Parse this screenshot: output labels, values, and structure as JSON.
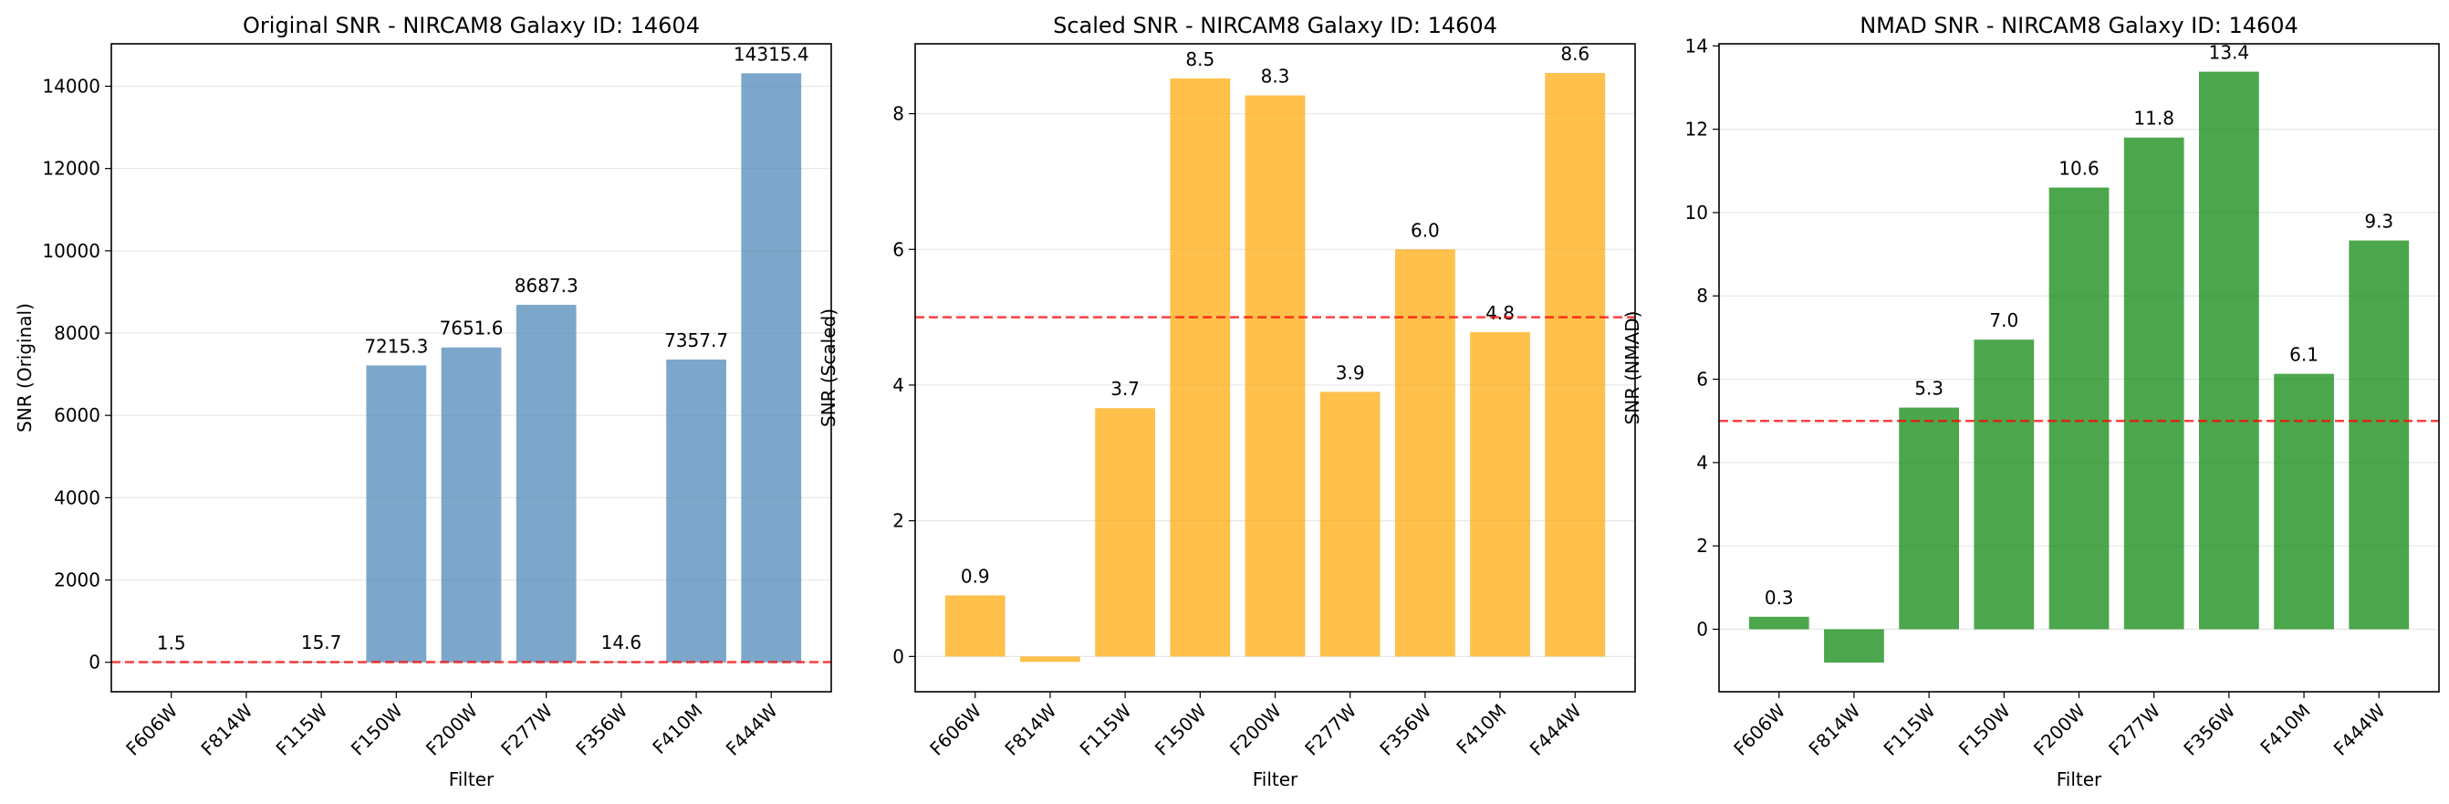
{
  "chart_data": [
    {
      "type": "bar",
      "title": "Original SNR - NIRCAM8 Galaxy ID: 14604",
      "xlabel": "Filter",
      "ylabel": "SNR (Original)",
      "categories": [
        "F606W",
        "F814W",
        "F115W",
        "F150W",
        "F200W",
        "F277W",
        "F356W",
        "F410M",
        "F444W"
      ],
      "values": [
        1.5,
        -0.5,
        15.7,
        7215.3,
        7651.6,
        8687.3,
        14.6,
        7357.7,
        14315.4
      ],
      "bar_labels": [
        "1.5",
        "",
        "15.7",
        "7215.3",
        "7651.6",
        "8687.3",
        "14.6",
        "7357.7",
        "14315.4"
      ],
      "ylim": [
        -716,
        15031
      ],
      "yticks": [
        0,
        2000,
        4000,
        6000,
        8000,
        10000,
        12000,
        14000
      ],
      "threshold": 5,
      "bar_color": "#4682B4",
      "bar_opacity": 0.7,
      "grid": "y"
    },
    {
      "type": "bar",
      "title": "Scaled SNR - NIRCAM8 Galaxy ID: 14604",
      "xlabel": "Filter",
      "ylabel": "SNR (Scaled)",
      "categories": [
        "F606W",
        "F814W",
        "F115W",
        "F150W",
        "F200W",
        "F277W",
        "F356W",
        "F410M",
        "F444W"
      ],
      "values": [
        0.9,
        -0.08,
        3.66,
        8.52,
        8.27,
        3.9,
        6.0,
        4.78,
        8.6
      ],
      "bar_labels": [
        "0.9",
        "",
        "3.7",
        "8.5",
        "8.3",
        "3.9",
        "6.0",
        "4.8",
        "8.6"
      ],
      "ylim": [
        -0.52,
        9.03
      ],
      "yticks": [
        0,
        2,
        4,
        6,
        8
      ],
      "threshold": 5,
      "bar_color": "#FFA500",
      "bar_opacity": 0.7,
      "grid": "y"
    },
    {
      "type": "bar",
      "title": "NMAD SNR - NIRCAM8 Galaxy ID: 14604",
      "xlabel": "Filter",
      "ylabel": "SNR (NMAD)",
      "categories": [
        "F606W",
        "F814W",
        "F115W",
        "F150W",
        "F200W",
        "F277W",
        "F356W",
        "F410M",
        "F444W"
      ],
      "values": [
        0.3,
        -0.8,
        5.32,
        6.95,
        10.6,
        11.8,
        13.38,
        6.13,
        9.33
      ],
      "bar_labels": [
        "0.3",
        "",
        "5.3",
        "7.0",
        "10.6",
        "11.8",
        "13.4",
        "6.1",
        "9.3"
      ],
      "ylim": [
        -1.5,
        14.05
      ],
      "yticks": [
        0,
        2,
        4,
        6,
        8,
        10,
        12,
        14
      ],
      "threshold": 5,
      "bar_color": "#008000",
      "bar_opacity": 0.7,
      "grid": "y"
    }
  ]
}
